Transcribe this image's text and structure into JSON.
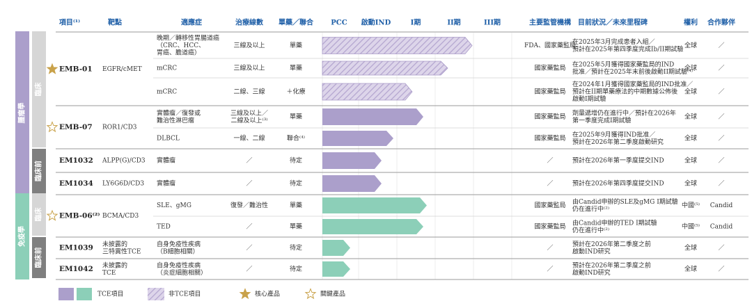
{
  "header": {
    "columns": [
      "項目⁽¹⁾",
      "靶點",
      "適應症",
      "治療線數",
      "單藥／聯合",
      "PCC",
      "啟動IND",
      "I期",
      "II期",
      "III期",
      "主要監管機構",
      "目前狀況／未來里程碑",
      "權利",
      "合作夥伴"
    ]
  },
  "areas": [
    {
      "name": "腫瘤學",
      "stages": [
        "臨床",
        "臨床前"
      ]
    },
    {
      "name": "免疫學",
      "stages": [
        "臨床",
        "臨床前"
      ]
    }
  ],
  "programs": [
    {
      "name": "EMB-01",
      "target": [
        "EGFR/cMET"
      ],
      "rows": [
        {
          "indication": [
            "晚期／轉移性胃腸道癌",
            "（CRC、HCC、",
            "胃癌、膽道癌）"
          ],
          "line": [
            "三線及以上"
          ],
          "mode": "單藥",
          "regulator": "FDA、國家藥監局",
          "status": [
            "在2025年3月完成患者入組／",
            "預計在2025年第四季度完成Ib/II期試驗"
          ],
          "rights": "全球",
          "partner": "／"
        },
        {
          "indication": [
            "mCRC"
          ],
          "line": [
            "三線及以上"
          ],
          "mode": "單藥",
          "regulator": "國家藥監局",
          "status": [
            "在2025年5月獲得國家藥監局的IND",
            "批准／預計在2025年末前後啟動II期試驗⁽⁴⁾"
          ],
          "rights": "全球",
          "partner": "／"
        },
        {
          "indication": [
            "mCRC"
          ],
          "line": [
            "二線、三線"
          ],
          "mode": "＋化療",
          "regulator": "國家藥監局",
          "status": [
            "在2024年1月獲得國家藥監局的IND批准／",
            "預計在II期單藥療法的中期數據公佈後",
            "啟動I期試驗"
          ],
          "rights": "全球",
          "partner": "／"
        }
      ]
    },
    {
      "name": "EMB-07",
      "target": [
        "ROR1/CD3"
      ],
      "rows": [
        {
          "indication": [
            "實體瘤／復發或",
            "難治性淋巴瘤"
          ],
          "line": [
            "三線及以上／",
            "二線及以上⁽³⁾"
          ],
          "mode": "單藥",
          "regulator": "國家藥監局",
          "status": [
            "劑量遞增仍在進行中／預計在2026年",
            "第一季度完成I期試驗"
          ],
          "rights": "全球",
          "partner": "／"
        },
        {
          "indication": [
            "DLBCL"
          ],
          "line": [
            "一線、二線"
          ],
          "mode": "聯合⁽⁴⁾",
          "regulator": "國家藥監局",
          "status": [
            "在2025年9月獲得IND批准／",
            "預計在2026年第二季度啟動研究"
          ],
          "rights": "全球",
          "partner": "／"
        }
      ]
    },
    {
      "name": "EM1032",
      "target": [
        "ALPP(G)/CD3"
      ],
      "rows": [
        {
          "indication": [
            "實體瘤"
          ],
          "line": [
            "／"
          ],
          "mode": "待定",
          "regulator": "／",
          "status": [
            "預計在2026年第一季度提交IND"
          ],
          "rights": "全球",
          "partner": "／"
        }
      ]
    },
    {
      "name": "EM1034",
      "target": [
        "LY6G6D/CD3"
      ],
      "rows": [
        {
          "indication": [
            "實體瘤"
          ],
          "line": [
            "／"
          ],
          "mode": "待定",
          "regulator": "／",
          "status": [
            "預計在2026年第四季度提交IND"
          ],
          "rights": "全球",
          "partner": "／"
        }
      ]
    },
    {
      "name": "EMB-06⁽²⁾",
      "target": [
        "BCMA/CD3"
      ],
      "rows": [
        {
          "indication": [
            "SLE、gMG"
          ],
          "line": [
            "復發／難治性"
          ],
          "mode": "單藥",
          "regulator": "國家藥監局",
          "status": [
            "由Candid申辦的SLE及gMG I期試驗",
            "仍在進行中⁽²⁾"
          ],
          "rights": "中國⁽⁵⁾",
          "partner": "Candid"
        },
        {
          "indication": [
            "TED"
          ],
          "line": [
            "／"
          ],
          "mode": "單藥",
          "regulator": "國家藥監局",
          "status": [
            "由Candid申辦的TED I期試驗",
            "仍在進行中⁽²⁾"
          ],
          "rights": "中國⁽⁵⁾",
          "partner": "Candid"
        }
      ]
    },
    {
      "name": "EM1039",
      "target": [
        "未披露的",
        "三特異性TCE"
      ],
      "rows": [
        {
          "indication": [
            "自身免疫性疾病",
            "（B細胞相關）"
          ],
          "line": [
            "／"
          ],
          "mode": "待定",
          "regulator": "／",
          "status": [
            "預計在2026年第二季度之前",
            "啟動IND研究"
          ],
          "rights": "全球",
          "partner": "／"
        }
      ]
    },
    {
      "name": "EM1042",
      "target": [
        "未披露的",
        "TCE"
      ],
      "rows": [
        {
          "indication": [
            "自身免疫性疾病",
            "（炎症細胞相關）"
          ],
          "line": [
            "／"
          ],
          "mode": "待定",
          "regulator": "／",
          "status": [
            "預計在2026年第二季度之前",
            "啟動IND研究"
          ],
          "rights": "全球",
          "partner": "／"
        }
      ]
    }
  ],
  "legend": {
    "tce": "TCE項目",
    "non_tce": "非TCE項目",
    "core": "核心產品",
    "key": "關鍵產品"
  }
}
